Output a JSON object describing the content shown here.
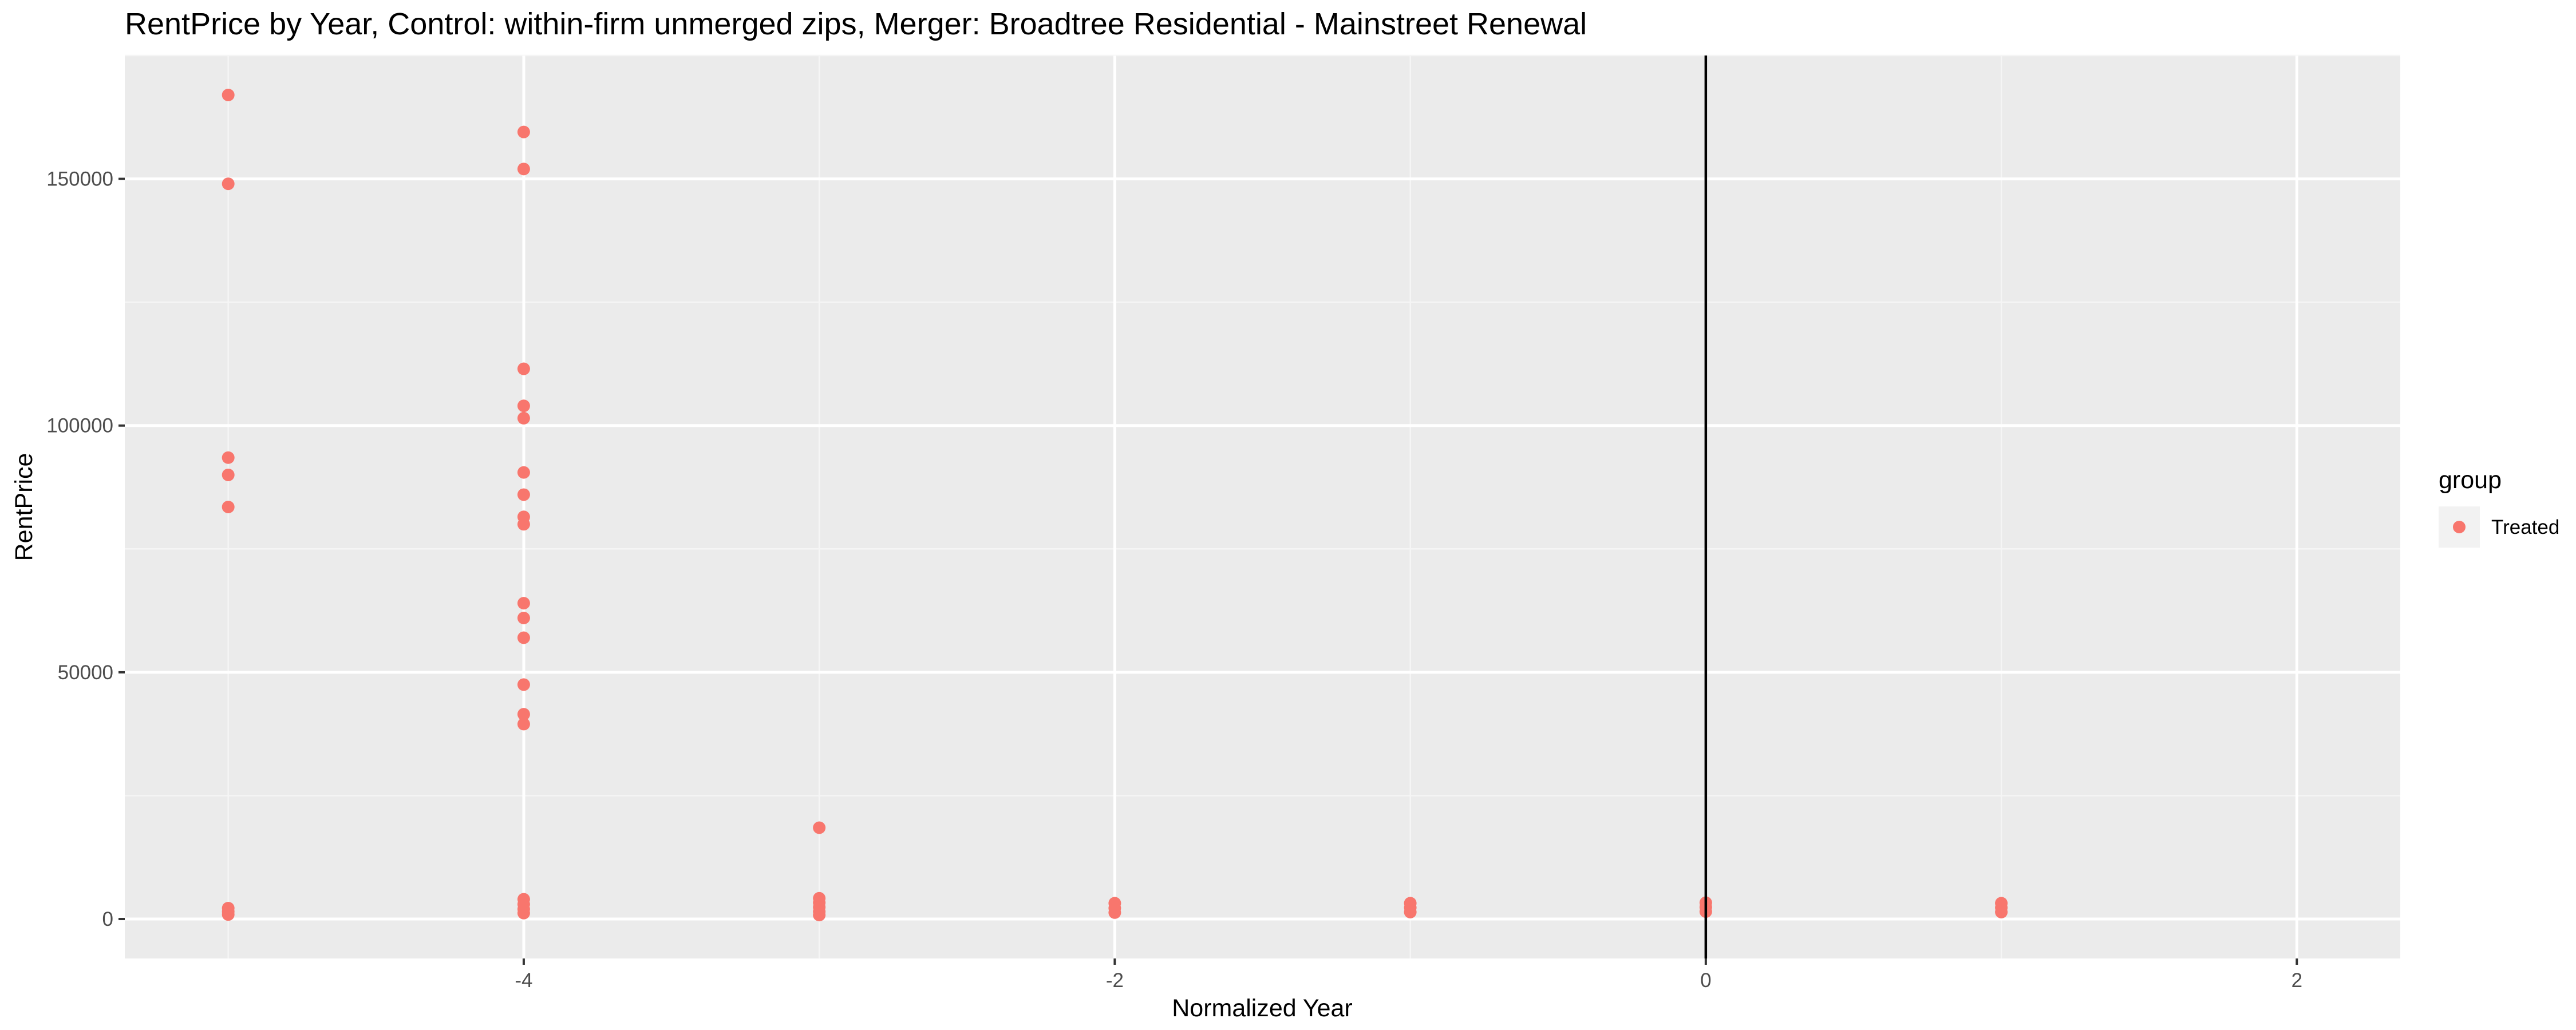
{
  "chart_data": {
    "type": "scatter",
    "title": "RentPrice by Year, Control: within-firm unmerged zips, Merger: Broadtree Residential - Mainstreet Renewal",
    "xlabel": "Normalized Year",
    "ylabel": "RentPrice",
    "xlim": [
      -5.35,
      2.35
    ],
    "ylim": [
      -8000,
      175000
    ],
    "x_ticks": [
      -4,
      -2,
      0,
      2
    ],
    "y_ticks": [
      0,
      50000,
      100000,
      150000
    ],
    "x_tick_labels": [
      "-4",
      "-2",
      "0",
      "2"
    ],
    "y_tick_labels": [
      "0",
      "50000",
      "100000",
      "150000"
    ],
    "grid": true,
    "background": "#ebebeb",
    "vline": {
      "x": 0,
      "color": "#000000"
    },
    "legend": {
      "title": "group",
      "position": "right",
      "entries": [
        "Treated"
      ]
    },
    "series": [
      {
        "name": "Treated",
        "color": "#f8766d",
        "points": [
          [
            -5,
            167000
          ],
          [
            -5,
            149000
          ],
          [
            -5,
            93500
          ],
          [
            -5,
            90000
          ],
          [
            -5,
            83500
          ],
          [
            -5,
            2200
          ],
          [
            -5,
            1500
          ],
          [
            -5,
            900
          ],
          [
            -4,
            159500
          ],
          [
            -4,
            152000
          ],
          [
            -4,
            111500
          ],
          [
            -4,
            104000
          ],
          [
            -4,
            101500
          ],
          [
            -4,
            90500
          ],
          [
            -4,
            86000
          ],
          [
            -4,
            81500
          ],
          [
            -4,
            80000
          ],
          [
            -4,
            64000
          ],
          [
            -4,
            61000
          ],
          [
            -4,
            57000
          ],
          [
            -4,
            47500
          ],
          [
            -4,
            41500
          ],
          [
            -4,
            39500
          ],
          [
            -4,
            4000
          ],
          [
            -4,
            3000
          ],
          [
            -4,
            2000
          ],
          [
            -4,
            1200
          ],
          [
            -3,
            18500
          ],
          [
            -3,
            4200
          ],
          [
            -3,
            3300
          ],
          [
            -3,
            2400
          ],
          [
            -3,
            1500
          ],
          [
            -3,
            800
          ],
          [
            -2,
            3200
          ],
          [
            -2,
            2200
          ],
          [
            -2,
            1300
          ],
          [
            -1,
            3200
          ],
          [
            -1,
            2300
          ],
          [
            -1,
            1400
          ],
          [
            0,
            3300
          ],
          [
            0,
            2400
          ],
          [
            0,
            1500
          ],
          [
            1,
            3200
          ],
          [
            1,
            2300
          ],
          [
            1,
            1400
          ]
        ]
      }
    ]
  }
}
